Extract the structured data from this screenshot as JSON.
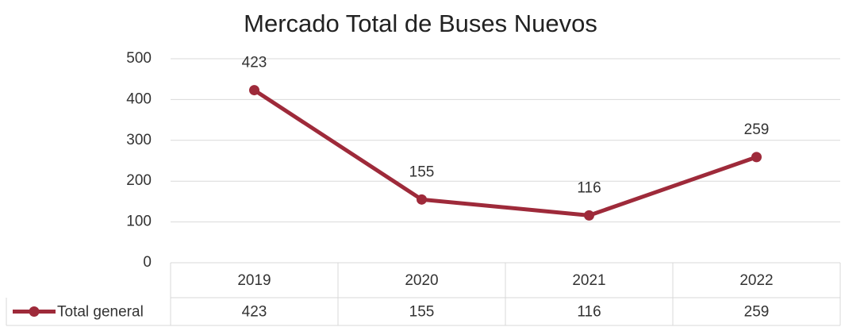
{
  "chart_data": {
    "type": "line",
    "title": "Mercado Total de Buses Nuevos",
    "categories": [
      "2019",
      "2020",
      "2021",
      "2022"
    ],
    "series": [
      {
        "name": "Total general",
        "color": "#9e2a3a",
        "values": [
          423,
          155,
          116,
          259
        ]
      }
    ],
    "ylim": [
      0,
      500
    ],
    "yticks": [
      0,
      100,
      200,
      300,
      400,
      500
    ],
    "grid": true,
    "data_table": true
  }
}
